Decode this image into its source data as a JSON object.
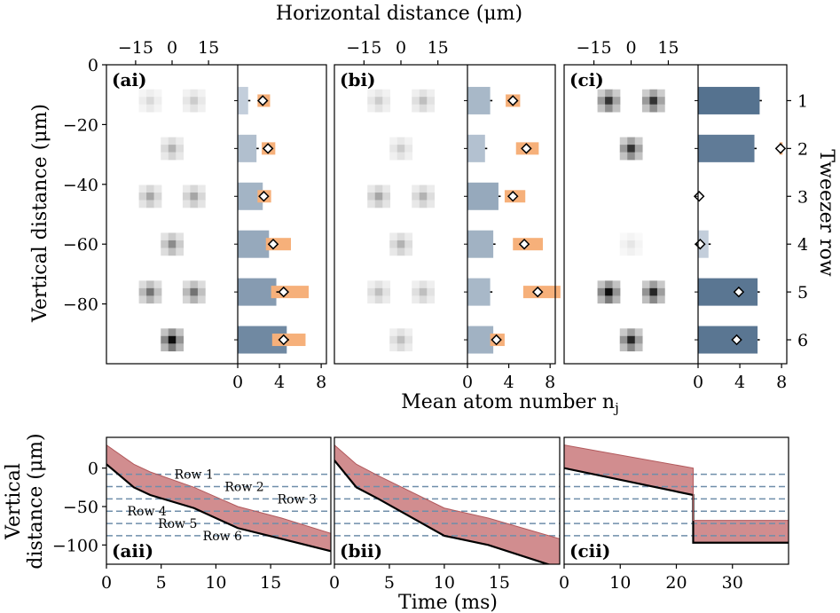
{
  "figure": {
    "top_xlabel": "Horizontal distance (μm)",
    "left_ylabel": "Vertical distance (μm)",
    "right_ylabel": "Tweezer row",
    "bar_xlabel": "Mean atom number n",
    "bar_xlabel_sub": "j",
    "bottom_ylabel_line1": "Vertical",
    "bottom_ylabel_line2": "distance (μm)",
    "bottom_xlabel": "Time (ms)"
  },
  "colors": {
    "bar_light": "#d9e1ea",
    "bar_dark": "#55728f",
    "orange": "#f6b07a",
    "band": "#c9797b",
    "dashed": "#6f8eaa",
    "heat_max": "#000000"
  },
  "chart_data": [
    {
      "type": "heatmap",
      "panel": "(ai)",
      "title": "(ai)",
      "xlim": [
        -27,
        27
      ],
      "ylim": [
        -100,
        0
      ],
      "xticks": [
        -15,
        0,
        15
      ],
      "yticks": [
        0,
        -20,
        -40,
        -60,
        -80
      ],
      "spots": [
        {
          "x": -9,
          "y": -12,
          "v": 0.15
        },
        {
          "x": 9,
          "y": -12,
          "v": 0.2
        },
        {
          "x": 0,
          "y": -28,
          "v": 0.3
        },
        {
          "x": -9,
          "y": -44,
          "v": 0.35
        },
        {
          "x": 9,
          "y": -44,
          "v": 0.35
        },
        {
          "x": 0,
          "y": -60,
          "v": 0.45
        },
        {
          "x": -9,
          "y": -76,
          "v": 0.55
        },
        {
          "x": 9,
          "y": -76,
          "v": 0.55
        },
        {
          "x": 0,
          "y": -92,
          "v": 0.95
        }
      ]
    },
    {
      "type": "bar",
      "panel": "(ai) bars",
      "orientation": "horizontal",
      "categories": [
        "1",
        "2",
        "3",
        "4",
        "5",
        "6"
      ],
      "values": [
        1.0,
        1.8,
        2.4,
        3.0,
        3.7,
        4.7
      ],
      "markers": [
        2.4,
        2.9,
        2.5,
        3.4,
        4.4,
        4.4
      ],
      "marker_low": [
        1.9,
        2.3,
        1.9,
        2.7,
        3.2,
        3.3
      ],
      "marker_high": [
        3.1,
        3.6,
        3.2,
        5.1,
        6.8,
        6.5
      ],
      "xlim": [
        0,
        8.5
      ],
      "xticks": [
        0,
        4,
        8
      ]
    },
    {
      "type": "heatmap",
      "panel": "(bi)",
      "title": "(bi)",
      "xlim": [
        -27,
        27
      ],
      "ylim": [
        -100,
        0
      ],
      "xticks": [
        -15,
        0,
        15
      ],
      "spots": [
        {
          "x": -9,
          "y": -12,
          "v": 0.2
        },
        {
          "x": 9,
          "y": -12,
          "v": 0.25
        },
        {
          "x": 0,
          "y": -28,
          "v": 0.2
        },
        {
          "x": -9,
          "y": -44,
          "v": 0.35
        },
        {
          "x": 9,
          "y": -44,
          "v": 0.3
        },
        {
          "x": 0,
          "y": -60,
          "v": 0.3
        },
        {
          "x": -9,
          "y": -76,
          "v": 0.25
        },
        {
          "x": 9,
          "y": -76,
          "v": 0.25
        },
        {
          "x": 0,
          "y": -92,
          "v": 0.25
        }
      ]
    },
    {
      "type": "bar",
      "panel": "(bi) bars",
      "orientation": "horizontal",
      "categories": [
        "1",
        "2",
        "3",
        "4",
        "5",
        "6"
      ],
      "values": [
        2.2,
        1.7,
        3.0,
        2.5,
        2.2,
        2.5
      ],
      "markers": [
        4.4,
        5.7,
        4.4,
        5.5,
        6.8,
        2.8
      ],
      "marker_low": [
        3.7,
        4.7,
        3.6,
        4.4,
        5.4,
        2.2
      ],
      "marker_high": [
        5.1,
        6.9,
        5.6,
        7.3,
        9.0,
        3.6
      ],
      "xlim": [
        0,
        8.5
      ],
      "xticks": [
        0,
        4,
        8
      ]
    },
    {
      "type": "heatmap",
      "panel": "(ci)",
      "title": "(ci)",
      "xlim": [
        -27,
        27
      ],
      "ylim": [
        -100,
        0
      ],
      "xticks": [
        -15,
        0,
        15
      ],
      "spots": [
        {
          "x": -9,
          "y": -12,
          "v": 0.8
        },
        {
          "x": 9,
          "y": -12,
          "v": 0.8
        },
        {
          "x": 0,
          "y": -28,
          "v": 0.8
        },
        {
          "x": -9,
          "y": -44,
          "v": 0.0
        },
        {
          "x": 9,
          "y": -44,
          "v": 0.0
        },
        {
          "x": 0,
          "y": -60,
          "v": 0.1
        },
        {
          "x": -9,
          "y": -76,
          "v": 0.95
        },
        {
          "x": 9,
          "y": -76,
          "v": 0.85
        },
        {
          "x": 0,
          "y": -92,
          "v": 0.85
        }
      ]
    },
    {
      "type": "bar",
      "panel": "(ci) bars",
      "orientation": "horizontal",
      "categories": [
        "1",
        "2",
        "3",
        "4",
        "5",
        "6"
      ],
      "values": [
        5.9,
        5.4,
        0.0,
        1.0,
        5.7,
        5.7
      ],
      "markers": [
        null,
        7.9,
        0.1,
        0.2,
        3.9,
        3.7
      ],
      "marker_low": [
        null,
        7.8,
        null,
        null,
        null,
        null
      ],
      "marker_high": [
        null,
        8.1,
        null,
        null,
        null,
        null
      ],
      "xlim": [
        0,
        8.5
      ],
      "xticks": [
        0,
        4,
        8
      ],
      "row_ticks": [
        "1",
        "2",
        "3",
        "4",
        "5",
        "6"
      ]
    },
    {
      "type": "area",
      "panel": "(aii)",
      "title": "(aii)",
      "xlim": [
        0,
        20.5
      ],
      "ylim": [
        -125,
        40
      ],
      "xticks": [
        0,
        5,
        10,
        15
      ],
      "yticks": [
        0,
        -50,
        -100
      ],
      "rows": [
        -8,
        -24,
        -40,
        -56,
        -72,
        -88
      ],
      "row_labels": [
        "Row 1",
        "Row 2",
        "Row 3",
        "Row 4",
        "Row 5",
        "Row 6"
      ],
      "row_label_pos": [
        [
          8,
          -8
        ],
        [
          12.6,
          -24
        ],
        [
          17.4,
          -40
        ],
        [
          3.7,
          -56
        ],
        [
          6.5,
          -72
        ],
        [
          10.6,
          -88
        ]
      ],
      "path": {
        "x": [
          0,
          2.5,
          4,
          8,
          12,
          16,
          20.5
        ],
        "y": [
          5,
          -25,
          -35,
          -52,
          -78,
          -92,
          -108
        ]
      },
      "band_upper": {
        "x": [
          0,
          2.5,
          4,
          8,
          12,
          16,
          20.5
        ],
        "y": [
          30,
          5,
          -5,
          -25,
          -50,
          -65,
          -85
        ]
      }
    },
    {
      "type": "area",
      "panel": "(bii)",
      "title": "(bii)",
      "xlim": [
        0,
        20.5
      ],
      "ylim": [
        -125,
        40
      ],
      "xticks": [
        0,
        5,
        10,
        15
      ],
      "rows": [
        -8,
        -24,
        -40,
        -56,
        -72,
        -88
      ],
      "path": {
        "x": [
          0,
          2,
          4,
          10,
          14,
          20.5
        ],
        "y": [
          10,
          -25,
          -40,
          -88,
          -100,
          -130
        ]
      },
      "band_upper": {
        "x": [
          0,
          2,
          4,
          10,
          14,
          20.5
        ],
        "y": [
          30,
          5,
          -10,
          -52,
          -65,
          -92
        ]
      }
    },
    {
      "type": "area",
      "panel": "(cii)",
      "title": "(cii)",
      "xlim": [
        0,
        40
      ],
      "ylim": [
        -125,
        40
      ],
      "xticks": [
        0,
        10,
        20,
        30
      ],
      "rows": [
        -8,
        -24,
        -40,
        -56,
        -72,
        -88
      ],
      "path": {
        "x": [
          0,
          23,
          23,
          40
        ],
        "y": [
          0,
          -35,
          -97,
          -97
        ]
      },
      "band_upper": {
        "x": [
          0,
          23,
          23,
          40
        ],
        "y": [
          30,
          0,
          -68,
          -68
        ]
      }
    }
  ]
}
